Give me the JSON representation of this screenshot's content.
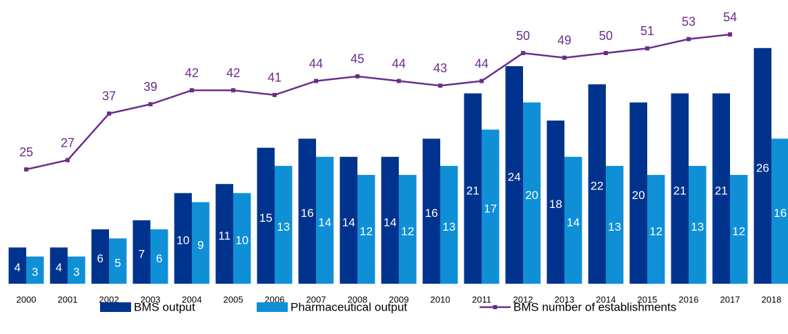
{
  "chart_data": {
    "type": "bar",
    "categories": [
      "2000",
      "2001",
      "2002",
      "2003",
      "2004",
      "2005",
      "2006",
      "2007",
      "2008",
      "2009",
      "2010",
      "2011",
      "2012",
      "2013",
      "2014",
      "2015",
      "2016",
      "2017",
      "2018"
    ],
    "series": [
      {
        "name": "BMS output",
        "type": "bar",
        "color": "#00338d",
        "values": [
          4,
          4,
          6,
          7,
          10,
          11,
          15,
          16,
          14,
          14,
          16,
          21,
          24,
          18,
          22,
          20,
          21,
          21,
          26
        ]
      },
      {
        "name": "Pharmaceutical output",
        "type": "bar",
        "color": "#0f8fd6",
        "values": [
          3,
          3,
          5,
          6,
          9,
          10,
          13,
          14,
          12,
          12,
          13,
          17,
          20,
          14,
          13,
          12,
          13,
          12,
          16
        ]
      },
      {
        "name": "BMS number of establishments",
        "type": "line",
        "axis": "y2",
        "color": "#6b2c8a",
        "values": [
          25,
          27,
          37,
          39,
          42,
          42,
          41,
          44,
          45,
          44,
          43,
          44,
          50,
          49,
          50,
          51,
          53,
          54,
          null
        ]
      }
    ],
    "ylim": [
      0,
      31.3
    ],
    "y2lim": [
      0,
      61.4
    ],
    "legend": "bottom"
  }
}
